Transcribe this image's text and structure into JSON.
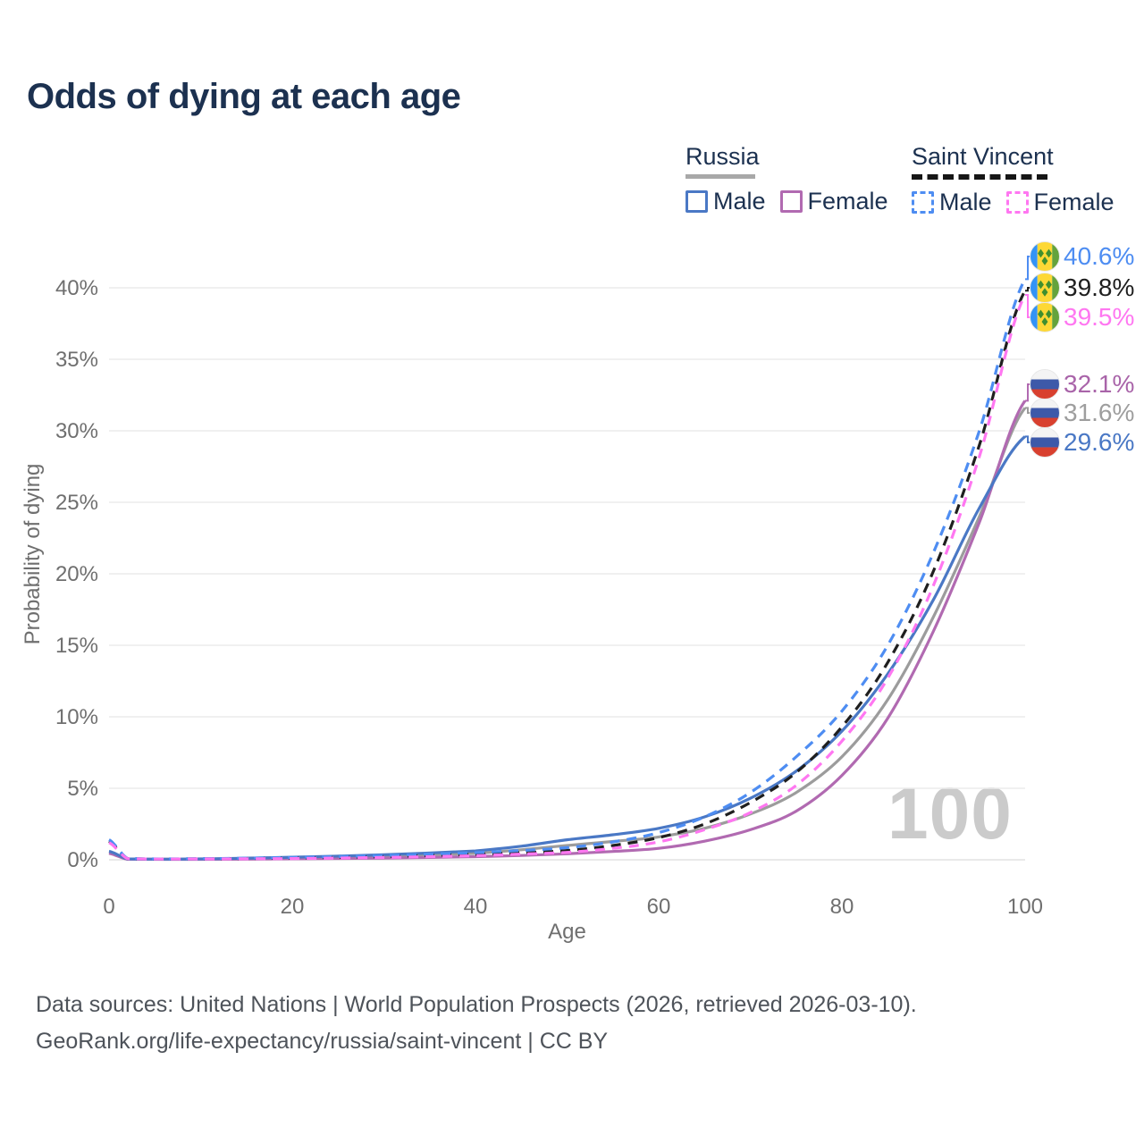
{
  "title": "Odds of dying at each age",
  "legend": {
    "groups": [
      {
        "id": "russia",
        "label": "Russia",
        "line_style": "solid",
        "underline_color": "#a8a8a8",
        "items": [
          {
            "label": "Male",
            "color": "#4a78c5"
          },
          {
            "label": "Female",
            "color": "#b16ab1"
          }
        ]
      },
      {
        "id": "saint-vincent",
        "label": "Saint Vincent",
        "line_style": "dashed",
        "underline_color": "#161616",
        "items": [
          {
            "label": "Male",
            "color": "#4e8df2"
          },
          {
            "label": "Female",
            "color": "#ff77f1"
          }
        ]
      }
    ]
  },
  "watermark": "100",
  "footer": {
    "line1": "Data sources: United Nations | World Population Prospects (2026, retrieved 2026-03-10).",
    "line2": "GeoRank.org/life-expectancy/russia/saint-vincent | CC BY"
  },
  "chart_data": {
    "type": "line",
    "title": "Odds of dying at each age",
    "xlabel": "Age",
    "ylabel": "Probability of dying",
    "x_ticks": [
      0,
      20,
      40,
      60,
      80,
      100
    ],
    "y_tick_labels": [
      "0%",
      "5%",
      "10%",
      "15%",
      "20%",
      "25%",
      "30%",
      "35%",
      "40%"
    ],
    "y_tick_values": [
      0,
      5,
      10,
      15,
      20,
      25,
      30,
      35,
      40
    ],
    "xlim": [
      0,
      100
    ],
    "ylim": [
      0,
      42.5
    ],
    "grid": "horizontal",
    "legend_position": "top-right",
    "ages": [
      0,
      2,
      10,
      20,
      30,
      40,
      45,
      50,
      55,
      60,
      65,
      70,
      75,
      80,
      85,
      90,
      95,
      100
    ],
    "series": [
      {
        "id": "russia-both",
        "name": "Russia (both sexes)",
        "color": "#9c9c9c",
        "dash": "solid",
        "flag": "russia",
        "values": [
          0.52,
          0.05,
          0.05,
          0.13,
          0.25,
          0.45,
          0.7,
          1.0,
          1.28,
          1.6,
          2.2,
          3.2,
          4.7,
          7.2,
          11.2,
          17.0,
          24.0,
          31.6
        ],
        "end_label": "31.6%",
        "end_label_color": "#9e9e9e",
        "label_pct": 31.25
      },
      {
        "id": "russia-female",
        "name": "Russia Female",
        "color": "#b16ab1",
        "dash": "solid",
        "flag": "russia",
        "values": [
          0.45,
          0.04,
          0.03,
          0.07,
          0.12,
          0.22,
          0.3,
          0.42,
          0.58,
          0.8,
          1.3,
          2.1,
          3.4,
          5.9,
          9.9,
          16.0,
          23.6,
          32.1
        ],
        "end_label": "32.1%",
        "end_label_color": "#a964a9",
        "label_pct": 33.25
      },
      {
        "id": "russia-male",
        "name": "Russia Male",
        "color": "#4a78c5",
        "dash": "solid",
        "flag": "russia",
        "values": [
          0.6,
          0.06,
          0.06,
          0.18,
          0.35,
          0.62,
          0.95,
          1.4,
          1.75,
          2.2,
          3.0,
          4.3,
          6.2,
          9.0,
          13.0,
          18.2,
          24.6,
          29.6
        ],
        "end_label": "29.6%",
        "end_label_color": "#4a78c5",
        "label_pct": 29.19
      },
      {
        "id": "saint-vincent-both",
        "name": "Saint Vincent (both sexes)",
        "color": "#1f1f1f",
        "dash": "dashed",
        "flag": "saint-vincent",
        "values": [
          1.3,
          0.09,
          0.07,
          0.12,
          0.22,
          0.38,
          0.5,
          0.65,
          1.0,
          1.55,
          2.5,
          4.0,
          6.1,
          9.3,
          13.8,
          20.2,
          29.0,
          39.8
        ],
        "end_label": "39.8%",
        "end_label_color": "#1f1f1f",
        "label_pct": 40.0
      },
      {
        "id": "saint-vincent-male",
        "name": "Saint Vincent Male",
        "color": "#4e8df2",
        "dash": "dashed",
        "flag": "saint-vincent",
        "values": [
          1.4,
          0.1,
          0.08,
          0.16,
          0.3,
          0.5,
          0.65,
          0.85,
          1.25,
          1.9,
          3.0,
          4.7,
          7.2,
          10.4,
          15.0,
          21.5,
          30.0,
          40.6
        ],
        "end_label": "40.6%",
        "end_label_color": "#4e8df2",
        "label_pct": 42.19
      },
      {
        "id": "saint-vincent-female",
        "name": "Saint Vincent Female",
        "color": "#ff77f1",
        "dash": "dashed",
        "flag": "saint-vincent",
        "values": [
          1.2,
          0.08,
          0.06,
          0.09,
          0.16,
          0.28,
          0.4,
          0.52,
          0.8,
          1.25,
          2.1,
          3.3,
          5.2,
          8.3,
          12.7,
          19.2,
          28.2,
          39.5
        ],
        "end_label": "39.5%",
        "end_label_color": "#ff77f1",
        "label_pct": 37.94
      }
    ],
    "flag_colors": {
      "russia": {
        "white": "#f4f4f4",
        "blue": "#3d59a9",
        "red": "#d8402f"
      },
      "saint_vincent": {
        "blue": "#3393f5",
        "yellow": "#fdd835",
        "green": "#64a33c",
        "diamond": "#3f8f2f"
      }
    },
    "axis_color": "#6f6f6f",
    "grid_color": "#ececec"
  }
}
